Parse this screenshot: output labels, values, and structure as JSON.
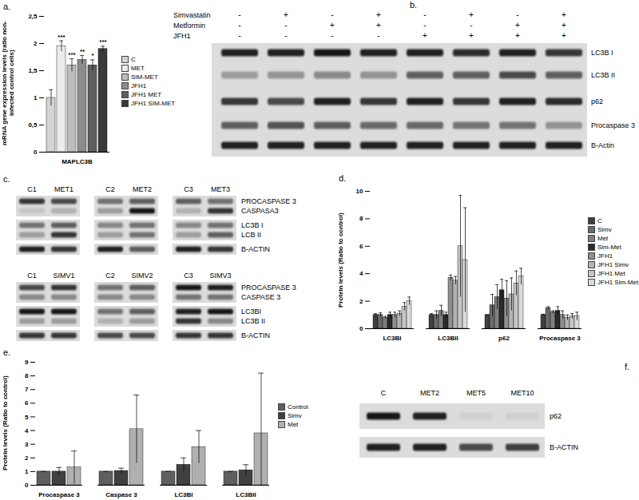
{
  "chart_data": [
    {
      "panel": "a.",
      "type": "bar",
      "categories": [
        "MAPLC3B"
      ],
      "ylabel": "mRNA gene expression levels (ratio non-infected control cells)",
      "ylim": [
        0,
        2.5
      ],
      "yticks": [
        0,
        {
          "value": 0.5,
          "label": "0,5"
        },
        1,
        {
          "value": 1.5,
          "label": "1,5"
        },
        2,
        {
          "value": 2.5,
          "label": "2,5"
        }
      ],
      "legend": "right",
      "series": [
        {
          "name": "C",
          "color": "#d4d4d4",
          "values": [
            1.0
          ],
          "errors": [
            0.15
          ]
        },
        {
          "name": "MET",
          "color": "#ececec",
          "values": [
            1.95
          ],
          "errors": [
            0.1
          ],
          "annotation": "***"
        },
        {
          "name": "SIM-MET",
          "color": "#bdbdbd",
          "values": [
            1.6
          ],
          "errors": [
            0.12
          ],
          "annotation": "***"
        },
        {
          "name": "JFH1",
          "color": "#8c8c8c",
          "values": [
            1.7
          ],
          "errors": [
            0.08
          ],
          "annotation": "**"
        },
        {
          "name": "JFH1 MET",
          "color": "#5e5e5e",
          "values": [
            1.6
          ],
          "errors": [
            0.1
          ],
          "annotation": "*"
        },
        {
          "name": "JFH1 SIM-MET",
          "color": "#3a3a3a",
          "values": [
            1.9
          ],
          "errors": [
            0.05
          ],
          "annotation": "***"
        }
      ]
    },
    {
      "panel": "d.",
      "type": "bar",
      "categories": [
        "LC3BI",
        "LC3BII",
        "p62",
        "Procaspase 3"
      ],
      "ylabel": "Protein levels (Ratio to control)",
      "ylim": [
        0,
        10
      ],
      "yticks": [
        0,
        2,
        4,
        6,
        8,
        10
      ],
      "legend": "right",
      "series": [
        {
          "name": "C",
          "color": "#404040",
          "values": [
            1,
            1,
            1,
            1
          ],
          "errors": [
            0.1,
            0.1,
            0,
            0.05
          ]
        },
        {
          "name": "Simv",
          "color": "#6b6b6b",
          "values": [
            1,
            1,
            1.7,
            1.5
          ],
          "errors": [
            0.15,
            0.3,
            0.8,
            0.1
          ]
        },
        {
          "name": "Met",
          "color": "#7f7f7f",
          "values": [
            0.8,
            1.3,
            2.3,
            1.2
          ],
          "errors": [
            0.1,
            0.4,
            0.9,
            0.1
          ]
        },
        {
          "name": "Sim-Met",
          "color": "#2b2b2b",
          "values": [
            1,
            1,
            2.8,
            1.3
          ],
          "errors": [
            0.2,
            0.2,
            0.8,
            0.3
          ]
        },
        {
          "name": "JFH1",
          "color": "#8f8f8f",
          "values": [
            1,
            3.7,
            2.2,
            1.0
          ],
          "errors": [
            0.2,
            0.2,
            1.3,
            0.3
          ]
        },
        {
          "name": "JFH1 Simv",
          "color": "#b3b3b3",
          "values": [
            1.1,
            3.5,
            2.5,
            0.8
          ],
          "errors": [
            0.2,
            0.3,
            1.2,
            0.2
          ]
        },
        {
          "name": "JFH1 Met",
          "color": "#c6c6c6",
          "values": [
            1.6,
            6.0,
            3.3,
            0.9
          ],
          "errors": [
            0.3,
            3.7,
            0.9,
            0.2
          ]
        },
        {
          "name": "JFH1 Sim-Met",
          "color": "#d9d9d9",
          "values": [
            2.0,
            5.0,
            3.8,
            0.9
          ],
          "errors": [
            0.3,
            3.8,
            0.6,
            0.3
          ]
        }
      ]
    },
    {
      "panel": "e.",
      "type": "bar",
      "categories": [
        "Procaspase 3",
        "Caspase 3",
        "LC3BI",
        "LC3BII"
      ],
      "ylabel": "Protein levels (Ratio to control)",
      "ylim": [
        0,
        9
      ],
      "yticks": [
        0,
        1,
        2,
        3,
        4,
        5,
        6,
        7,
        8,
        9
      ],
      "legend": "right",
      "series": [
        {
          "name": "Control",
          "color": "#5f5f5f",
          "values": [
            1,
            1,
            1,
            1
          ],
          "errors": [
            0,
            0,
            0,
            0
          ]
        },
        {
          "name": "Simv",
          "color": "#404040",
          "values": [
            1.0,
            1.05,
            1.5,
            1.1
          ],
          "errors": [
            0.3,
            0.2,
            0.5,
            0.4
          ]
        },
        {
          "name": "Met",
          "color": "#b0b0b0",
          "values": [
            1.3,
            4.1,
            2.8,
            3.8
          ],
          "errors": [
            1.2,
            2.5,
            1.2,
            4.4
          ]
        }
      ]
    }
  ],
  "blots": [
    {
      "panel": "b.",
      "blocks": [
        {
          "conditions": [
            {
              "name": "Simvastatin",
              "signs": [
                "-",
                "+",
                "-",
                "+",
                "-",
                "+",
                "-",
                "+"
              ]
            },
            {
              "name": "Metformin",
              "signs": [
                "-",
                "-",
                "+",
                "+",
                "-",
                "-",
                "+",
                "+"
              ]
            },
            {
              "name": "JFH1",
              "signs": [
                "-",
                "-",
                "-",
                "-",
                "+",
                "+",
                "+",
                "+"
              ]
            }
          ],
          "strips": [
            {
              "rows": [
                {
                  "label": "LC3B I",
                  "intensity": [
                    0.9,
                    0.9,
                    0.95,
                    0.9,
                    0.9,
                    0.85,
                    0.9,
                    0.8
                  ]
                },
                {
                  "label": "LC3B II",
                  "intensity": [
                    0.3,
                    0.35,
                    0.4,
                    0.35,
                    0.6,
                    0.6,
                    0.7,
                    0.6
                  ]
                },
                {
                  "label": "p62",
                  "intensity": [
                    0.8,
                    0.7,
                    0.9,
                    0.8,
                    0.9,
                    0.8,
                    0.9,
                    0.85
                  ]
                },
                {
                  "label": "Procaspase 3",
                  "intensity": [
                    0.6,
                    0.65,
                    0.6,
                    0.55,
                    0.55,
                    0.5,
                    0.5,
                    0.35
                  ]
                },
                {
                  "label": "B-Actin",
                  "intensity": [
                    0.9,
                    0.9,
                    0.9,
                    0.9,
                    0.9,
                    0.9,
                    0.9,
                    0.9
                  ]
                }
              ]
            }
          ]
        }
      ]
    },
    {
      "panel": "c.",
      "blocks": [
        {
          "groups": [
            [
              "C1",
              "MET1"
            ],
            [
              "C2",
              "MET2"
            ],
            [
              "C3",
              "MET3"
            ]
          ],
          "strips": [
            {
              "rows": [
                {
                  "label": "PROCASPASE 3",
                  "intensity": [
                    0.8,
                    0.7,
                    0.5,
                    0.6,
                    0.6,
                    0.5
                  ]
                },
                {
                  "label": "CASPASA3",
                  "intensity": [
                    0.1,
                    0.2,
                    0.3,
                    0.95,
                    0.2,
                    0.8
                  ]
                }
              ]
            },
            {
              "rows": [
                {
                  "label": "LC3B I",
                  "intensity": [
                    0.5,
                    0.6,
                    0.4,
                    0.5,
                    0.4,
                    0.5
                  ]
                },
                {
                  "label": "LCB II",
                  "intensity": [
                    0.3,
                    0.8,
                    0.3,
                    0.5,
                    0.3,
                    0.6
                  ]
                }
              ]
            },
            {
              "rows": [
                {
                  "label": "B-ACTIN",
                  "intensity": [
                    0.9,
                    0.8,
                    0.9,
                    0.6,
                    0.9,
                    0.8
                  ]
                }
              ]
            }
          ]
        },
        {
          "groups": [
            [
              "C1",
              "SIMV1"
            ],
            [
              "C2",
              "SIMV2"
            ],
            [
              "C3",
              "SIMV3"
            ]
          ],
          "strips": [
            {
              "rows": [
                {
                  "label": "PROCASPASE 3",
                  "intensity": [
                    0.7,
                    0.8,
                    0.5,
                    0.6,
                    0.95,
                    0.9
                  ]
                },
                {
                  "label": "CASPASE 3",
                  "intensity": [
                    0.4,
                    0.4,
                    0.4,
                    0.4,
                    0.5,
                    0.5
                  ]
                }
              ]
            },
            {
              "rows": [
                {
                  "label": "LC3BI",
                  "intensity": [
                    0.95,
                    0.95,
                    0.5,
                    0.6,
                    0.9,
                    0.95
                  ]
                },
                {
                  "label": "LC3B II",
                  "intensity": [
                    0.3,
                    0.3,
                    0.2,
                    0.3,
                    0.8,
                    0.4
                  ]
                }
              ]
            },
            {
              "rows": [
                {
                  "label": "B-ACTIN",
                  "intensity": [
                    0.8,
                    0.8,
                    0.7,
                    0.7,
                    0.8,
                    0.8
                  ]
                }
              ]
            }
          ]
        }
      ]
    },
    {
      "panel": "f.",
      "blocks": [
        {
          "groups": [
            [
              "C",
              "MET2",
              "MET5",
              "MET10"
            ]
          ],
          "strips": [
            {
              "rows": [
                {
                  "label": "p62",
                  "intensity": [
                    0.95,
                    0.9,
                    0.05,
                    0.05
                  ]
                }
              ]
            },
            {
              "rows": [
                {
                  "label": "B-ACTIN",
                  "intensity": [
                    0.9,
                    0.9,
                    0.7,
                    0.75
                  ]
                }
              ]
            }
          ]
        }
      ]
    }
  ]
}
